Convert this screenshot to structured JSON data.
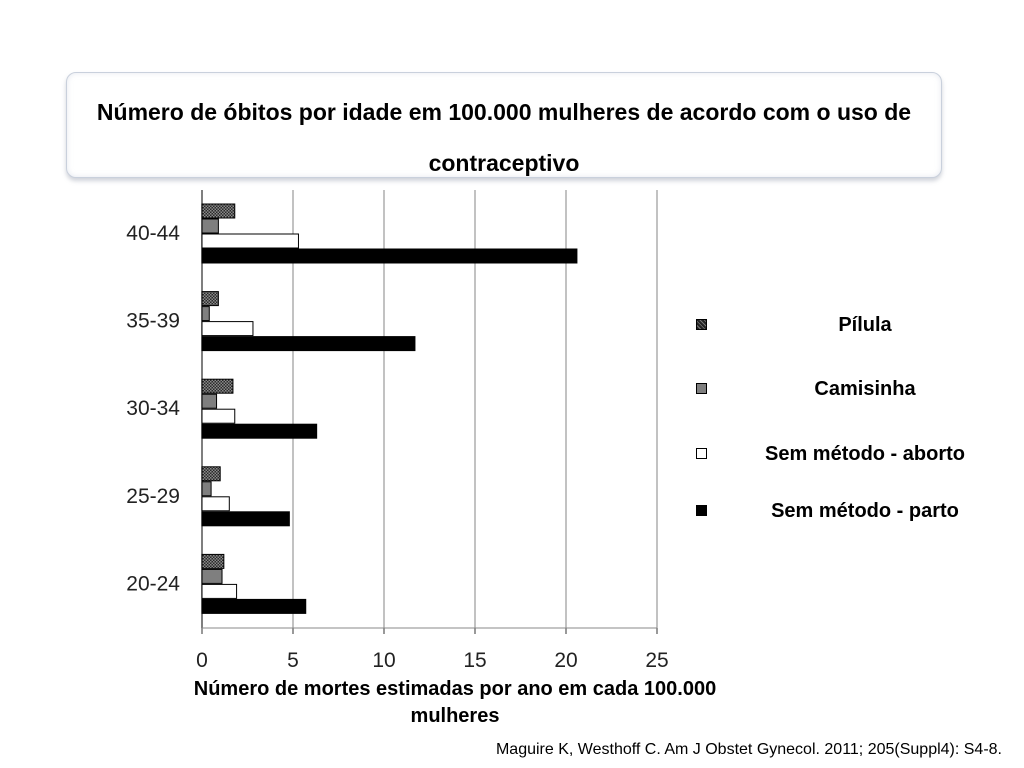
{
  "title": "Número de óbitos por idade em 100.000 mulheres de acordo com o uso de contraceptivo",
  "citation": "Maguire K, Westhoff C. Am J Obstet Gynecol. 2011; 205(Suppl4): S4-8.",
  "chart_data": {
    "type": "bar",
    "orientation": "horizontal",
    "title": "Número de óbitos por idade em 100.000 mulheres de acordo com o uso de contraceptivo",
    "xlabel": "Número de mortes estimadas  por ano em cada 100.000 mulheres",
    "ylabel": "",
    "xlim": [
      0,
      25
    ],
    "xticks": [
      0,
      5,
      10,
      15,
      20,
      25
    ],
    "grid": "vertical",
    "legend_position": "right",
    "categories": [
      "40-44",
      "35-39",
      "30-34",
      "25-29",
      "20-24"
    ],
    "series": [
      {
        "name": "Pílula",
        "values": [
          1.8,
          0.9,
          1.7,
          1.0,
          1.2
        ],
        "color": "#3a3a3a",
        "pattern": "hatched"
      },
      {
        "name": "Camisinha",
        "values": [
          0.9,
          0.4,
          0.8,
          0.5,
          1.1
        ],
        "color": "#7f7f7f",
        "pattern": "solid"
      },
      {
        "name": "Sem método - aborto",
        "values": [
          5.3,
          2.8,
          1.8,
          1.5,
          1.9
        ],
        "color": "#ffffff",
        "pattern": "solid"
      },
      {
        "name": "Sem método - parto",
        "values": [
          20.6,
          11.7,
          6.3,
          4.8,
          5.7
        ],
        "color": "#000000",
        "pattern": "solid"
      }
    ]
  }
}
